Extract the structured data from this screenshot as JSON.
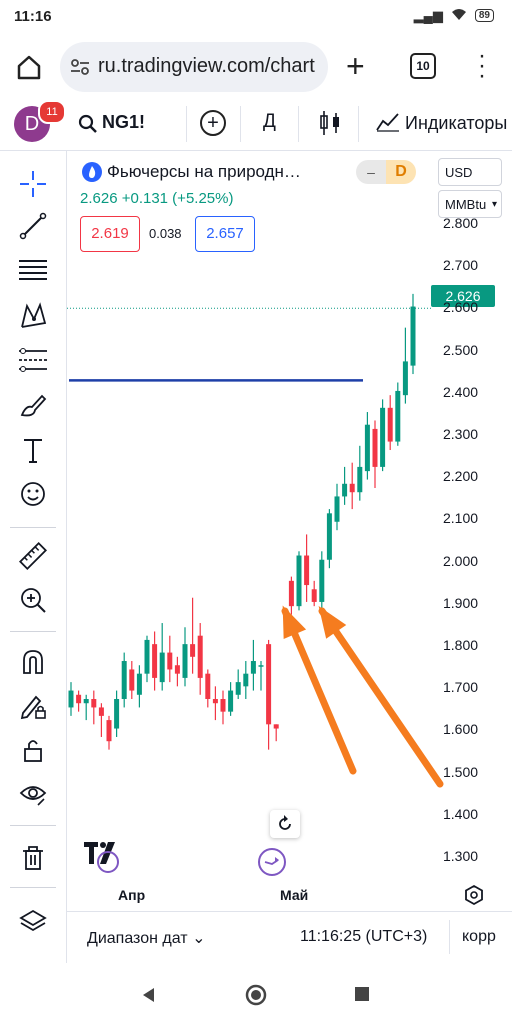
{
  "status_bar": {
    "time": "11:16",
    "signal": "..ıl",
    "battery": "89"
  },
  "browser": {
    "url": "ru.tradingview.com/chart",
    "tab_count": "10"
  },
  "toolbar": {
    "avatar_letter": "D",
    "notifications": "11",
    "symbol": "NG1!",
    "interval": "Д",
    "indicators_label": "Индикаторы"
  },
  "legend": {
    "title": "Фьючерсы на природн…",
    "price": "2.626",
    "change": "+0.131 (+5.25%)",
    "bid": "2.619",
    "spread": "0.038",
    "ask": "2.657",
    "badge_minus": "–",
    "badge_d": "D"
  },
  "price_scale": {
    "currency": "USD",
    "unit": "MMBtu",
    "ticks": [
      "2.800",
      "2.700",
      "2.600",
      "2.500",
      "2.400",
      "2.300",
      "2.200",
      "2.100",
      "2.000",
      "1.900",
      "1.800",
      "1.700",
      "1.600",
      "1.500",
      "1.400",
      "1.300"
    ],
    "last_price": "2.626"
  },
  "time_scale": {
    "labels": [
      "Апр",
      "Май"
    ]
  },
  "footer": {
    "date_range": "Диапазон дат",
    "clock": "11:16:25 (UTC+3)",
    "correction": "корр"
  },
  "colors": {
    "up": "#089981",
    "down": "#f23645",
    "hline": "#1e3fa8",
    "arrow": "#f57c1f"
  }
}
